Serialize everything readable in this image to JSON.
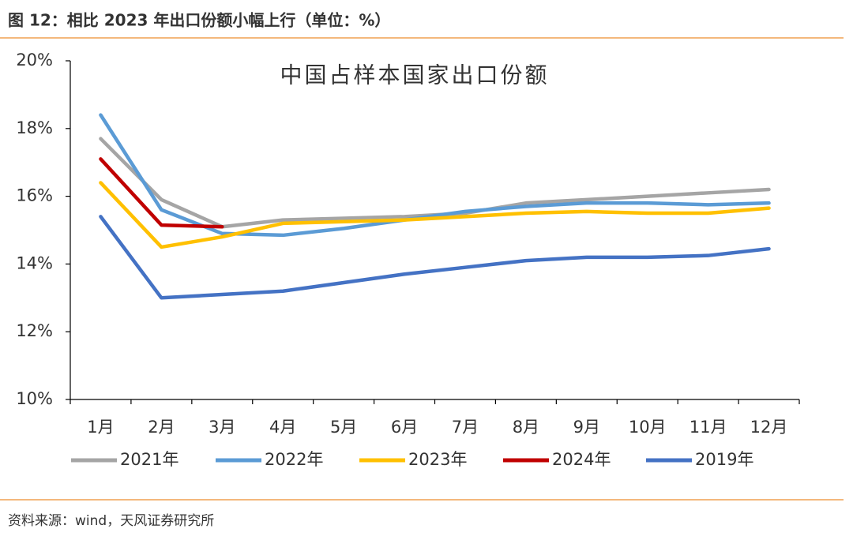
{
  "header": {
    "title": "图 12：相比 2023 年出口份额小幅上行（单位：%）"
  },
  "chart_data": {
    "type": "line",
    "title": "中国占样本国家出口份额",
    "categories": [
      "1月",
      "2月",
      "3月",
      "4月",
      "5月",
      "6月",
      "7月",
      "8月",
      "9月",
      "10月",
      "11月",
      "12月"
    ],
    "series": [
      {
        "name": "2021年",
        "color": "#a5a5a5",
        "values": [
          17.7,
          15.9,
          15.1,
          15.3,
          15.35,
          15.4,
          15.5,
          15.8,
          15.9,
          16.0,
          16.1,
          16.2
        ]
      },
      {
        "name": "2022年",
        "color": "#5b9bd5",
        "values": [
          18.4,
          15.6,
          14.9,
          14.85,
          15.05,
          15.3,
          15.55,
          15.7,
          15.8,
          15.8,
          15.75,
          15.8
        ]
      },
      {
        "name": "2023年",
        "color": "#ffc000",
        "values": [
          16.4,
          14.5,
          14.8,
          15.2,
          15.25,
          15.3,
          15.4,
          15.5,
          15.55,
          15.5,
          15.5,
          15.65
        ]
      },
      {
        "name": "2024年",
        "color": "#c00000",
        "values": [
          17.1,
          15.15,
          15.1,
          null,
          null,
          null,
          null,
          null,
          null,
          null,
          null,
          null
        ]
      },
      {
        "name": "2019年",
        "color": "#4472c4",
        "values": [
          15.4,
          13.0,
          13.1,
          13.2,
          13.45,
          13.7,
          13.9,
          14.1,
          14.2,
          14.2,
          14.25,
          14.45
        ]
      }
    ],
    "ylim": [
      10,
      20
    ],
    "yticks": [
      {
        "value": 10,
        "label": "10%"
      },
      {
        "value": 12,
        "label": "12%"
      },
      {
        "value": 14,
        "label": "14%"
      },
      {
        "value": 16,
        "label": "16%"
      },
      {
        "value": 18,
        "label": "18%"
      },
      {
        "value": 20,
        "label": "20%"
      }
    ],
    "legend": "bottom"
  },
  "footer": {
    "source": "资料来源：wind，天风证券研究所"
  }
}
